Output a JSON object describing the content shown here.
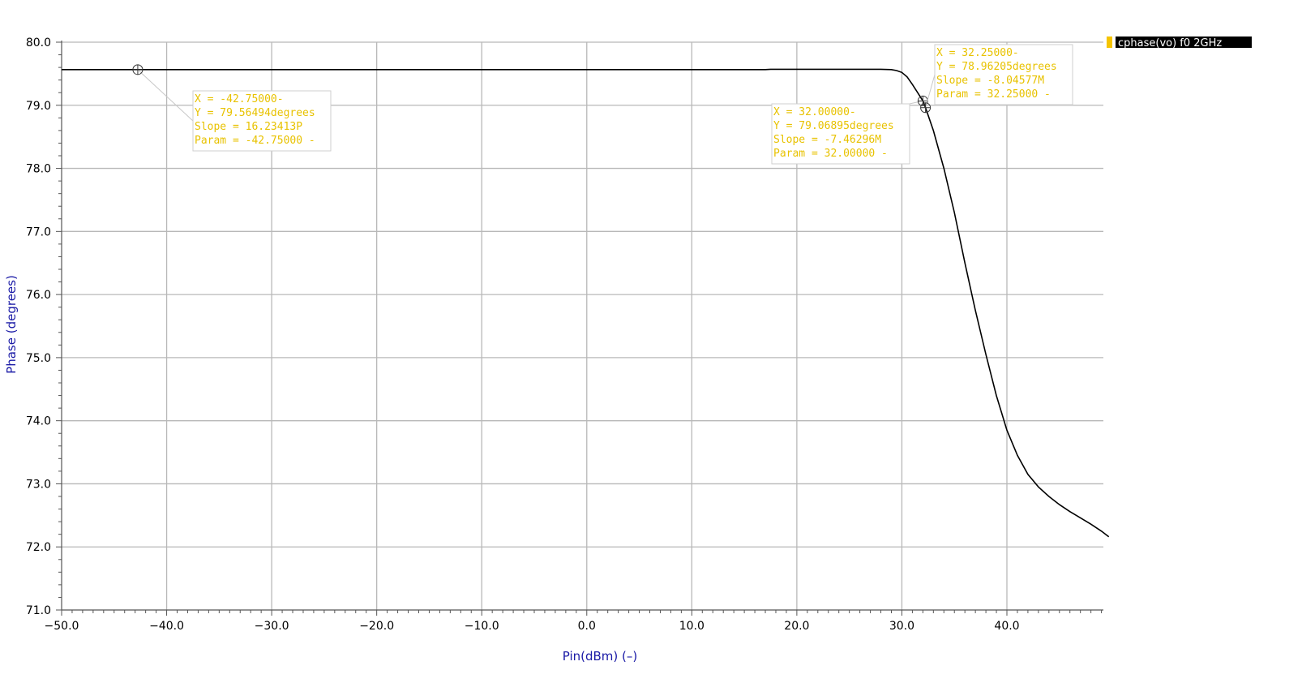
{
  "chart_data": {
    "type": "line",
    "xlabel": "Pin(dBm) (–)",
    "ylabel": "Phase (degrees)",
    "xlim": [
      -50,
      50
    ],
    "ylim": [
      71,
      80
    ],
    "grid": true,
    "x_ticks": [
      -50,
      -40,
      -30,
      -20,
      -10,
      0,
      10,
      20,
      30,
      40
    ],
    "x_tick_labels": [
      "−50.0",
      "−40.0",
      "−30.0",
      "−20.0",
      "−10.0",
      "0.0",
      "10.0",
      "20.0",
      "30.0",
      "40.0"
    ],
    "y_ticks": [
      71,
      72,
      73,
      74,
      75,
      76,
      77,
      78,
      79,
      80
    ],
    "y_tick_labels": [
      "71.0",
      "72.0",
      "73.0",
      "74.0",
      "75.0",
      "76.0",
      "77.0",
      "78.0",
      "79.0",
      "80.0"
    ],
    "legend_position": "top-right",
    "series": [
      {
        "name": "cphase(vo) f0 2GHz",
        "color": "#000000",
        "legend_color": "#f5c400",
        "x": [
          -50,
          -40,
          -30,
          -20,
          -10,
          0,
          10,
          17,
          17.5,
          20,
          25,
          28,
          29,
          29.5,
          30,
          30.5,
          31,
          31.5,
          32,
          32.25,
          33,
          34,
          35,
          36,
          37,
          38,
          39,
          40,
          41,
          42,
          43,
          44,
          45,
          46,
          47,
          48,
          49,
          49.7
        ],
        "y": [
          79.565,
          79.565,
          79.565,
          79.565,
          79.565,
          79.565,
          79.565,
          79.565,
          79.57,
          79.57,
          79.57,
          79.57,
          79.565,
          79.55,
          79.52,
          79.45,
          79.33,
          79.2,
          79.069,
          78.962,
          78.6,
          78.0,
          77.3,
          76.5,
          75.75,
          75.05,
          74.4,
          73.85,
          73.45,
          73.15,
          72.95,
          72.8,
          72.67,
          72.56,
          72.46,
          72.36,
          72.25,
          72.16
        ]
      }
    ],
    "markers": [
      {
        "x": -42.75,
        "y": 79.56494,
        "lines": [
          "X = -42.75000-",
          "Y = 79.56494degrees",
          "Slope = 16.23413P",
          "Param = -42.75000 -"
        ]
      },
      {
        "x": 32.0,
        "y": 79.06895,
        "lines": [
          "X = 32.00000-",
          "Y = 79.06895degrees",
          "Slope = -7.46296M",
          "Param = 32.00000 -"
        ]
      },
      {
        "x": 32.25,
        "y": 78.96205,
        "lines": [
          "X = 32.25000-",
          "Y = 78.96205degrees",
          "Slope = -8.04577M",
          "Param = 32.25000 -"
        ]
      }
    ]
  }
}
